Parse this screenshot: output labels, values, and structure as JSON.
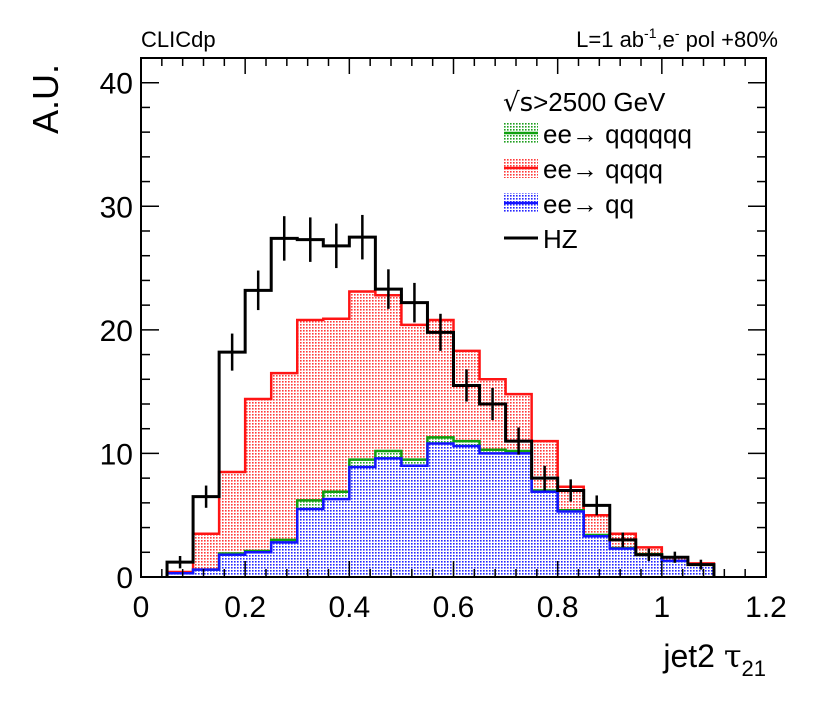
{
  "chart_data": {
    "type": "histogram-stacked",
    "header_left": "CLICdp",
    "header_right": {
      "lumi": "L=1 ab",
      "lumi_sup": "-1",
      "beam": ",e",
      "beam_sup": "-",
      "pol": " pol +80%"
    },
    "energy_label": {
      "root": "√s",
      "rest": ">2500 GeV"
    },
    "ylabel": "A.U.",
    "xlabel": {
      "main": "jet2 ",
      "greek": "τ",
      "sub": "21"
    },
    "xlim": [
      0,
      1.2
    ],
    "ylim": [
      0,
      42
    ],
    "x_ticks": [
      0,
      0.2,
      0.4,
      0.6,
      0.8,
      1,
      1.2
    ],
    "x_tick_labels": [
      "0",
      "0.2",
      "0.4",
      "0.6",
      "0.8",
      "1",
      "1.2"
    ],
    "y_ticks": [
      0,
      10,
      20,
      30,
      40
    ],
    "y_tick_labels": [
      "0",
      "10",
      "20",
      "30",
      "40"
    ],
    "bin_edges": [
      0.05,
      0.1,
      0.15,
      0.2,
      0.25,
      0.3,
      0.35,
      0.4,
      0.45,
      0.5,
      0.55,
      0.6,
      0.65,
      0.7,
      0.75,
      0.8,
      0.85,
      0.9,
      0.95,
      1.0,
      1.05,
      1.1
    ],
    "series": [
      {
        "name": "ee→ qq",
        "legend_label": "ee→ qq",
        "kind": "stack-base",
        "color": "#1414ff",
        "fill": "#8f8fff",
        "values": [
          0.3,
          0.6,
          1.8,
          2.0,
          2.8,
          5.5,
          6.3,
          8.9,
          9.6,
          9.0,
          10.8,
          10.6,
          10.0,
          10.0,
          6.9,
          5.3,
          3.3,
          2.3,
          1.8,
          1.3,
          1.0
        ]
      },
      {
        "name": "ee→ qqqq",
        "legend_label": "ee→ qqqq",
        "kind": "stack-total",
        "color": "#ff1414",
        "fill": "#ff9090",
        "values": [
          0.4,
          3.5,
          8.5,
          14.4,
          16.5,
          20.8,
          20.9,
          23.1,
          22.8,
          20.4,
          20.8,
          18.3,
          16.0,
          14.8,
          11.0,
          7.3,
          5.0,
          3.5,
          2.4,
          1.6,
          1.1
        ]
      },
      {
        "name": "ee→ qqqqqq",
        "legend_label": "ee→ qqqqqq",
        "kind": "stack-mid",
        "color": "#10a010",
        "fill": "#8fd08f",
        "values": [
          0.3,
          0.6,
          1.9,
          2.1,
          3.0,
          6.2,
          6.9,
          9.5,
          10.2,
          9.5,
          11.3,
          11.0,
          10.3,
          10.2,
          7.0,
          5.4,
          3.4,
          2.35,
          1.85,
          1.3,
          1.0
        ]
      },
      {
        "name": "HZ",
        "legend_label": "HZ",
        "kind": "points",
        "color": "#000000",
        "values": [
          1.2,
          6.5,
          18.2,
          23.2,
          27.4,
          27.3,
          26.8,
          27.5,
          23.3,
          22.2,
          19.8,
          15.5,
          14.0,
          11.0,
          8.0,
          7.0,
          5.8,
          3.0,
          1.8,
          1.6,
          1.0
        ],
        "errors": [
          0.5,
          0.9,
          1.5,
          1.6,
          1.8,
          1.8,
          1.8,
          1.8,
          1.6,
          1.6,
          1.5,
          1.3,
          1.3,
          1.1,
          1.0,
          0.9,
          0.8,
          0.6,
          0.5,
          0.45,
          0.4
        ]
      }
    ]
  }
}
